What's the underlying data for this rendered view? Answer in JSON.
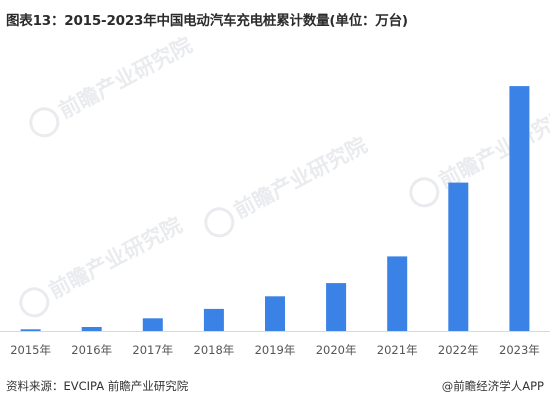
{
  "title": "图表13：2015-2023年中国电动汽车充电桩累计数量(单位：万台)",
  "chart_data": {
    "type": "bar",
    "categories": [
      "2015年",
      "2016年",
      "2017年",
      "2018年",
      "2019年",
      "2020年",
      "2021年",
      "2022年",
      "2023年"
    ],
    "values": [
      5.8,
      14.1,
      44.6,
      77.7,
      121.9,
      168.1,
      261.7,
      521.0,
      859.6
    ],
    "title": "图表13：2015-2023年中国电动汽车充电桩累计数量(单位：万台)",
    "xlabel": "",
    "ylabel": "",
    "ylim": [
      0,
      860
    ],
    "grid": false,
    "legend": "none",
    "bar_color": "#3b82e6",
    "axis_color": "#d9d9d9"
  },
  "watermarks": [
    "前瞻产业研究院",
    "前瞻产业研究院",
    "前瞻产业研究院",
    "前瞻产业研究院"
  ],
  "footer": {
    "source": "资料来源：EVCIPA 前瞻产业研究院",
    "brand": "@前瞻经济学人APP"
  }
}
